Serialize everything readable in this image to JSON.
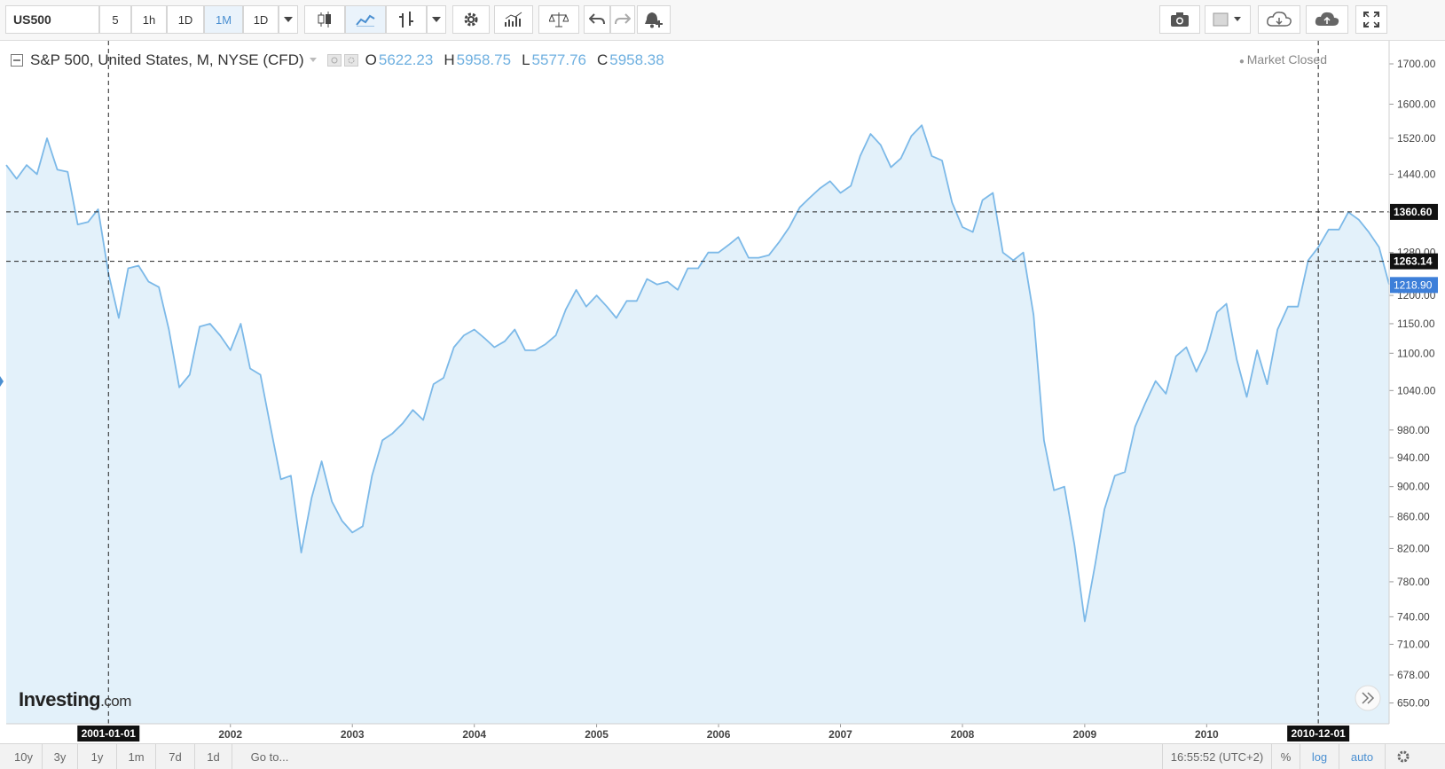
{
  "toolbar": {
    "symbol": "US500",
    "intervals": [
      "5",
      "1h",
      "1D",
      "1M",
      "1D"
    ],
    "active_interval_index": 3,
    "icons": [
      "candles-icon",
      "line-chart-icon",
      "bar-chart-icon",
      "chevron-down-icon",
      "gear-icon",
      "indicators-icon",
      "compare-icon",
      "undo-icon",
      "redo-icon",
      "alert-icon",
      "camera-icon",
      "layout-icon",
      "cloud-download-icon",
      "cloud-upload-icon",
      "fullscreen-icon"
    ]
  },
  "legend": {
    "title": "S&P 500, United States, M, NYSE (CFD)",
    "o_label": "O",
    "o": "5622.23",
    "h_label": "H",
    "h": "5958.75",
    "l_label": "L",
    "l": "5577.76",
    "c_label": "C",
    "c": "5958.38"
  },
  "market_status": "Market Closed",
  "logo": {
    "main": "Investing",
    "suffix": ".com"
  },
  "bottom": {
    "ranges": [
      "10y",
      "3y",
      "1y",
      "1m",
      "7d",
      "1d",
      "Go to..."
    ],
    "time": "16:55:52 (UTC+2)",
    "percent": "%",
    "log": "log",
    "auto": "auto"
  },
  "colors": {
    "line": "#7cb9e8",
    "fill": "#e3f1fa",
    "last_price": "#3d7fd9",
    "crosshair_label": "#111111"
  },
  "chart_data": {
    "type": "area",
    "scale": "log",
    "ylim": [
      630,
      1760
    ],
    "y_ticks": [
      1700,
      1600,
      1520,
      1440,
      1360,
      1280,
      1200,
      1150,
      1100,
      1040,
      980,
      940,
      900,
      860,
      820,
      780,
      740,
      710,
      678,
      650
    ],
    "y_tick_labels": [
      "1700.00",
      "1600.00",
      "1520.00",
      "1440.00",
      "1360.00",
      "1280.00",
      "1200.00",
      "1150.00",
      "1100.00",
      "1040.00",
      "980.00",
      "940.00",
      "900.00",
      "860.00",
      "820.00",
      "780.00",
      "740.00",
      "710.00",
      "678.00",
      "650.00"
    ],
    "x_labels": [
      "2002",
      "2003",
      "2004",
      "2005",
      "2006",
      "2007",
      "2008",
      "2009",
      "2010"
    ],
    "x_label_dates": [
      "2002-01-01",
      "2003-01-01",
      "2004-01-01",
      "2005-01-01",
      "2006-01-01",
      "2007-01-01",
      "2008-01-01",
      "2009-01-01",
      "2010-01-01"
    ],
    "x_range": [
      "2000-03-01",
      "2011-07-01"
    ],
    "crosshair_x_labels": [
      "2001-01-01",
      "2010-12-01"
    ],
    "crosshair_y_labels": [
      "1360.60",
      "1263.14"
    ],
    "crosshair_y_values": [
      1360.6,
      1263.14
    ],
    "last_price_label": "1218.90",
    "last_price": 1218.9,
    "start_date": "2000-03-01",
    "series": [
      {
        "values": [
          1460,
          1430,
          1460,
          1440,
          1520,
          1450,
          1445,
          1335,
          1340,
          1366,
          1240,
          1160,
          1250,
          1255,
          1225,
          1215,
          1140,
          1045,
          1065,
          1145,
          1150,
          1130,
          1105,
          1150,
          1075,
          1065,
          985,
          910,
          915,
          815,
          885,
          935,
          880,
          855,
          840,
          848,
          915,
          965,
          975,
          990,
          1010,
          995,
          1050,
          1060,
          1110,
          1130,
          1140,
          1125,
          1110,
          1120,
          1140,
          1105,
          1105,
          1115,
          1130,
          1175,
          1210,
          1180,
          1200,
          1180,
          1160,
          1190,
          1190,
          1230,
          1220,
          1225,
          1210,
          1250,
          1250,
          1280,
          1280,
          1295,
          1310,
          1270,
          1270,
          1275,
          1300,
          1330,
          1370,
          1390,
          1410,
          1425,
          1400,
          1415,
          1480,
          1530,
          1505,
          1455,
          1475,
          1525,
          1550,
          1480,
          1470,
          1380,
          1330,
          1320,
          1385,
          1400,
          1280,
          1265,
          1280,
          1165,
          965,
          895,
          900,
          825,
          735,
          800,
          870,
          915,
          920,
          985,
          1020,
          1055,
          1035,
          1095,
          1110,
          1070,
          1105,
          1170,
          1185,
          1090,
          1030,
          1105,
          1050,
          1140,
          1180,
          1180,
          1265,
          1290,
          1325,
          1325,
          1360,
          1345,
          1320,
          1290,
          1220
        ]
      }
    ]
  }
}
